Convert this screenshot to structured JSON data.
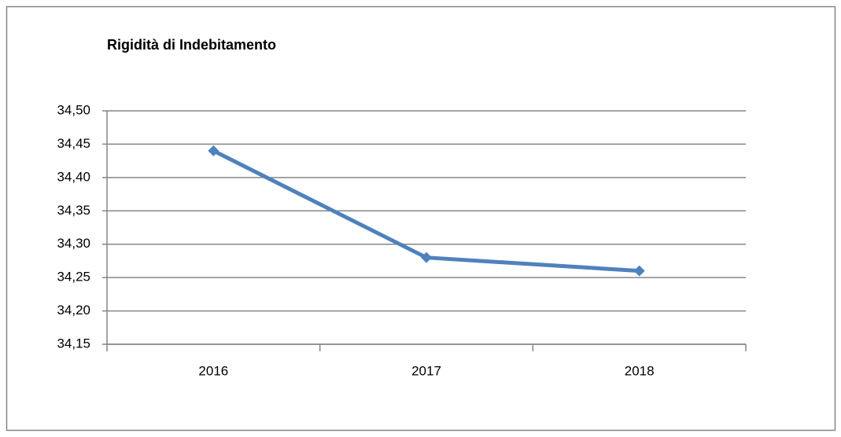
{
  "chart_data": {
    "type": "line",
    "title": "Rigidità di Indebitamento",
    "categories": [
      "2016",
      "2017",
      "2018"
    ],
    "series": [
      {
        "name": "Rigidità di Indebitamento",
        "color": "#4f81bd",
        "values": [
          34.44,
          34.28,
          34.26
        ]
      }
    ],
    "ylim": [
      34.15,
      34.5
    ],
    "yticks": [
      {
        "value": 34.15,
        "label": "34,15"
      },
      {
        "value": 34.2,
        "label": "34,20"
      },
      {
        "value": 34.25,
        "label": "34,25"
      },
      {
        "value": 34.3,
        "label": "34,30"
      },
      {
        "value": 34.35,
        "label": "34,35"
      },
      {
        "value": 34.4,
        "label": "34,40"
      },
      {
        "value": 34.45,
        "label": "34,45"
      },
      {
        "value": 34.5,
        "label": "34,50"
      }
    ],
    "grid": true
  }
}
